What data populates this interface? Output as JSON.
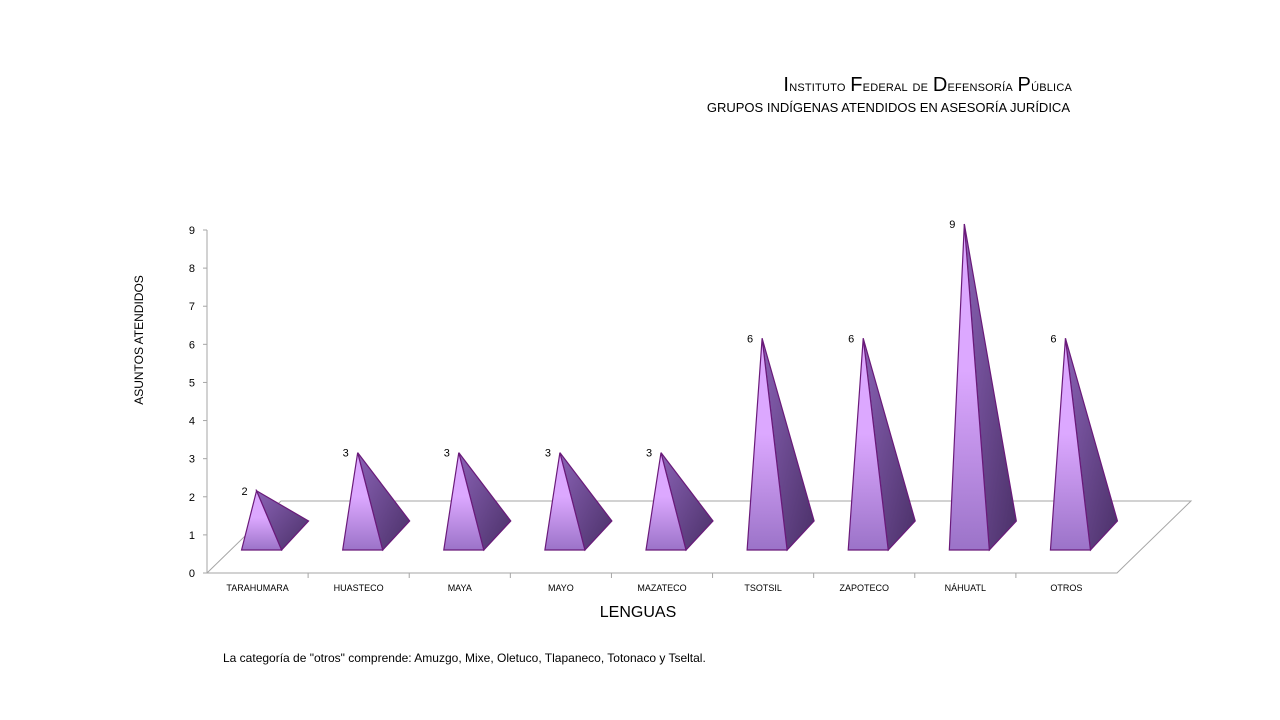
{
  "title": {
    "parts": [
      {
        "cap": "I",
        "rest": "nstituto "
      },
      {
        "cap": "F",
        "rest": "ederal de "
      },
      {
        "cap": "D",
        "rest": "efensoría "
      },
      {
        "cap": "P",
        "rest": "ública"
      }
    ]
  },
  "subtitle": "GRUPOS INDÍGENAS ATENDIDOS EN ASESORÍA JURÍDICA",
  "footnote": "La categoría de \"otros\" comprende: Amuzgo, Mixe, Oletuco, Tlapaneco, Totonaco y Tseltal.",
  "colors": {
    "light": "#dca8ff",
    "mid": "#9b73c8",
    "dark": "#4a3068",
    "outline": "#6a1a7a",
    "axis": "#a6a6a6"
  },
  "chart_data": {
    "type": "bar",
    "shape": "3d-pyramid",
    "title": "Instituto Federal de Defensoría Pública — GRUPOS INDÍGENAS ATENDIDOS EN ASESORÍA JURÍDICA",
    "xlabel": "LENGUAS",
    "ylabel": "ASUNTOS ATENDIDOS",
    "ylim": [
      0,
      9
    ],
    "yticks": [
      0,
      1,
      2,
      3,
      4,
      5,
      6,
      7,
      8,
      9
    ],
    "categories": [
      "TARAHUMARA",
      "HUASTECO",
      "MAYA",
      "MAYO",
      "MAZATECO",
      "TSOTSIL",
      "ZAPOTECO",
      "NÁHUATL",
      "OTROS"
    ],
    "values": [
      2,
      3,
      3,
      3,
      3,
      6,
      6,
      9,
      6
    ],
    "data_labels": true,
    "grid": false
  }
}
